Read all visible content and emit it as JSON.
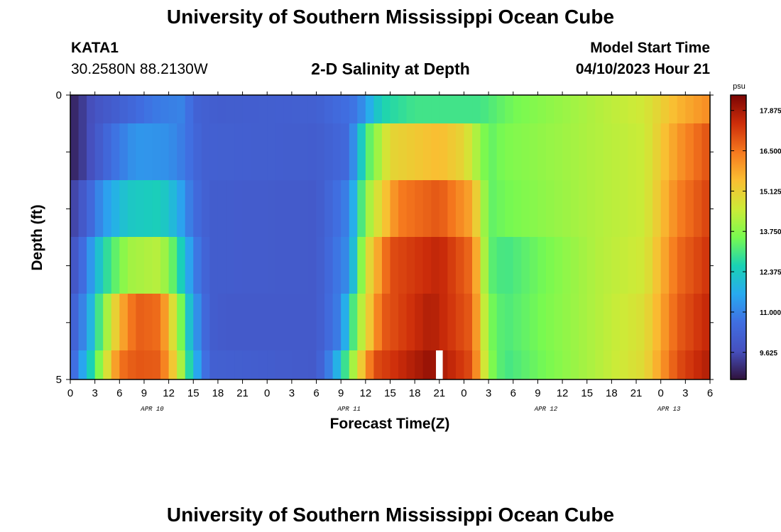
{
  "header": {
    "title": "University of Southern Mississippi Ocean Cube",
    "station": "KATA1",
    "coords": "30.2580N  88.2130W",
    "subtitle": "2-D Salinity at Depth",
    "start_label": "Model Start Time",
    "start_value": "04/10/2023 Hour 21"
  },
  "footer": {
    "title": "University of Southern Mississippi Ocean Cube"
  },
  "chart_data": {
    "type": "heatmap",
    "title": "2-D Salinity at Depth",
    "xlabel": "Forecast Time(Z)",
    "ylabel": "Depth (ft)",
    "ylim": [
      0,
      5
    ],
    "y_tick_labels": [
      "0",
      "5"
    ],
    "x_tick_labels": [
      "0",
      "3",
      "6",
      "9",
      "12",
      "15",
      "18",
      "21",
      "0",
      "3",
      "6",
      "9",
      "12",
      "15",
      "18",
      "21",
      "0",
      "3",
      "6",
      "9",
      "12",
      "15",
      "18",
      "21",
      "0",
      "3",
      "6"
    ],
    "date_labels": [
      {
        "label": "APR 10",
        "hour": 10
      },
      {
        "label": "APR 11",
        "hour": 34
      },
      {
        "label": "APR 12",
        "hour": 58
      },
      {
        "label": "APR 13",
        "hour": 73
      }
    ],
    "hours_total": 78,
    "depth_layers": 5,
    "colorbar": {
      "unit": "psu",
      "min": 8.7,
      "max": 18.4,
      "ticks": [
        "17.875",
        "16.500",
        "15.125",
        "13.750",
        "12.375",
        "11.000",
        "9.625"
      ]
    },
    "layer_anchors": [
      [
        [
          0,
          8.9
        ],
        [
          3,
          9.8
        ],
        [
          6,
          10.2
        ],
        [
          10,
          10.8
        ],
        [
          14,
          11.0
        ],
        [
          15,
          10.3
        ],
        [
          18,
          10.1
        ],
        [
          30,
          10.2
        ],
        [
          35,
          10.8
        ],
        [
          38,
          12.6
        ],
        [
          42,
          13.0
        ],
        [
          50,
          13.0
        ],
        [
          54,
          13.5
        ],
        [
          64,
          14.2
        ],
        [
          70,
          14.6
        ],
        [
          74,
          15.6
        ],
        [
          78,
          16.2
        ]
      ],
      [
        [
          0,
          8.9
        ],
        [
          2,
          9.5
        ],
        [
          5,
          10.6
        ],
        [
          8,
          11.3
        ],
        [
          12,
          11.2
        ],
        [
          14,
          10.8
        ],
        [
          16,
          10.2
        ],
        [
          30,
          10.1
        ],
        [
          34,
          10.5
        ],
        [
          36,
          13.0
        ],
        [
          39,
          15.0
        ],
        [
          45,
          15.5
        ],
        [
          48,
          15.0
        ],
        [
          51,
          13.3
        ],
        [
          53,
          13.6
        ],
        [
          64,
          14.2
        ],
        [
          70,
          14.5
        ],
        [
          74,
          16.0
        ],
        [
          78,
          17.0
        ]
      ],
      [
        [
          0,
          9.3
        ],
        [
          2,
          10.2
        ],
        [
          4,
          11.3
        ],
        [
          7,
          12.3
        ],
        [
          11,
          12.5
        ],
        [
          13,
          11.8
        ],
        [
          15,
          10.6
        ],
        [
          17,
          10.1
        ],
        [
          30,
          10.0
        ],
        [
          34,
          11.0
        ],
        [
          36,
          13.8
        ],
        [
          40,
          16.4
        ],
        [
          45,
          16.9
        ],
        [
          49,
          15.8
        ],
        [
          51,
          13.3
        ],
        [
          53,
          13.5
        ],
        [
          64,
          14.2
        ],
        [
          70,
          14.5
        ],
        [
          74,
          16.3
        ],
        [
          78,
          17.2
        ]
      ],
      [
        [
          0,
          9.6
        ],
        [
          2,
          10.9
        ],
        [
          4,
          12.6
        ],
        [
          7,
          14.0
        ],
        [
          11,
          14.3
        ],
        [
          13,
          13.0
        ],
        [
          15,
          11.0
        ],
        [
          17,
          10.1
        ],
        [
          30,
          10.0
        ],
        [
          34,
          11.2
        ],
        [
          36,
          14.6
        ],
        [
          39,
          17.0
        ],
        [
          45,
          17.6
        ],
        [
          49,
          16.6
        ],
        [
          51,
          13.3
        ],
        [
          53,
          13.0
        ],
        [
          64,
          14.2
        ],
        [
          70,
          14.6
        ],
        [
          74,
          16.6
        ],
        [
          78,
          17.4
        ]
      ],
      [
        [
          0,
          10.0
        ],
        [
          2,
          11.3
        ],
        [
          4,
          13.6
        ],
        [
          6,
          15.6
        ],
        [
          8,
          16.8
        ],
        [
          11,
          16.6
        ],
        [
          13,
          14.2
        ],
        [
          15,
          11.5
        ],
        [
          17,
          10.1
        ],
        [
          19,
          10.0
        ],
        [
          30,
          10.0
        ],
        [
          33,
          11.0
        ],
        [
          35,
          13.8
        ],
        [
          38,
          16.8
        ],
        [
          44,
          17.8
        ],
        [
          49,
          16.8
        ],
        [
          51,
          13.6
        ],
        [
          53,
          13.1
        ],
        [
          64,
          14.2
        ],
        [
          70,
          14.8
        ],
        [
          74,
          16.8
        ],
        [
          78,
          17.6
        ]
      ],
      [
        [
          0,
          10.2
        ],
        [
          2,
          12.0
        ],
        [
          4,
          14.2
        ],
        [
          6,
          16.5
        ],
        [
          8,
          16.9
        ],
        [
          11,
          16.8
        ],
        [
          13,
          14.8
        ],
        [
          15,
          12.0
        ],
        [
          17,
          10.2
        ],
        [
          30,
          10.0
        ],
        [
          32,
          11.2
        ],
        [
          34,
          13.5
        ],
        [
          37,
          17.0
        ],
        [
          44,
          18.1
        ],
        [
          49,
          17.0
        ],
        [
          51,
          13.8
        ],
        [
          53,
          13.0
        ],
        [
          64,
          14.2
        ],
        [
          70,
          14.9
        ],
        [
          74,
          17.0
        ],
        [
          78,
          17.8
        ]
      ]
    ],
    "missing_cell": {
      "layer": 5,
      "hour": 45
    }
  }
}
